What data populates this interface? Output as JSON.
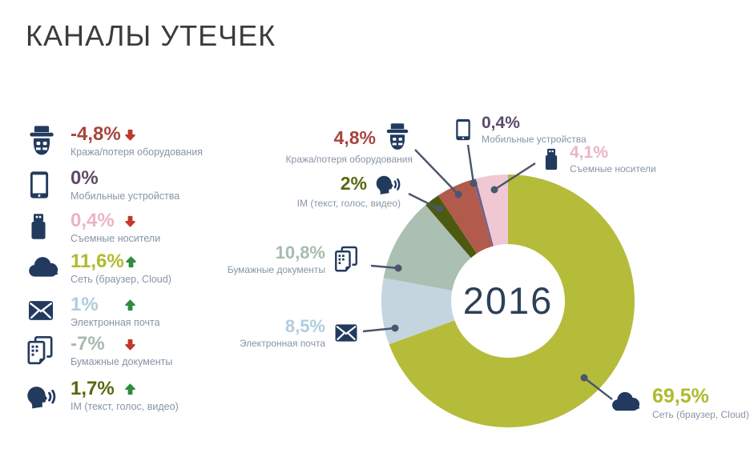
{
  "title": "КАНАЛЫ УТЕЧЕК",
  "center_year": "2016",
  "colors": {
    "icon_navy": "#223a5e",
    "label_gray": "#8795a5",
    "connector": "#49566b",
    "trend_up": "#2f8c3c",
    "trend_down": "#c0392b",
    "title_text": "#3b3b3b",
    "center_year_text": "#2d4057"
  },
  "legend": {
    "items": [
      {
        "icon": "thief-icon",
        "value": "-4,8%",
        "trend": "down",
        "label": "Кража/потеря оборудования",
        "color": "#a8453c"
      },
      {
        "icon": "tablet-icon",
        "value": "0%",
        "trend": "none",
        "label": "Мобильные устройства",
        "color": "#5d4b69"
      },
      {
        "icon": "usb-icon",
        "value": "0,4%",
        "trend": "down",
        "label": "Съемные носители",
        "color": "#eab4c4"
      },
      {
        "icon": "cloud-icon",
        "value": "11,6%",
        "trend": "up",
        "label": "Сеть (браузер, Cloud)",
        "color": "#afba2e"
      },
      {
        "icon": "envelope-icon",
        "value": "1%",
        "trend": "up",
        "label": "Электронная почта",
        "color": "#b0cddd"
      },
      {
        "icon": "documents-icon",
        "value": "-7%",
        "trend": "down",
        "label": "Бумажные документы",
        "color": "#a5bcae"
      },
      {
        "icon": "speaking-head-icon",
        "value": "1,7%",
        "trend": "up",
        "label": "IM (текст, голос, видео)",
        "color": "#5a660f"
      }
    ]
  },
  "callouts": [
    {
      "icon": "thief-icon",
      "value": "4,8%",
      "label": "Кража/потеря оборудования",
      "color": "#a8453c"
    },
    {
      "icon": "tablet-icon",
      "value": "0,4%",
      "label": "Мобильные устройства",
      "color": "#5d4b69"
    },
    {
      "icon": "usb-icon",
      "value": "4,1%",
      "label": "Съемные носители",
      "color": "#eab4c4"
    },
    {
      "icon": "speaking-head-icon",
      "value": "2%",
      "label": "IM (текст, голос, видео)",
      "color": "#5a660f"
    },
    {
      "icon": "documents-icon",
      "value": "10,8%",
      "label": "Бумажные документы",
      "color": "#a5bcae"
    },
    {
      "icon": "envelope-icon",
      "value": "8,5%",
      "label": "Электронная почта",
      "color": "#b0cddd"
    },
    {
      "icon": "cloud-icon",
      "value": "69,5%",
      "label": "Сеть (браузер, Cloud)",
      "color": "#afba2e"
    }
  ],
  "chart_data": {
    "type": "pie",
    "subtype": "donut",
    "title": "КАНАЛЫ УТЕЧЕК",
    "center_label": "2016",
    "unit": "%",
    "start_angle_deg": 0,
    "direction": "clockwise",
    "slices": [
      {
        "label": "Сеть (браузер, Cloud)",
        "value": 69.5,
        "display": "69,5%",
        "color": "#b4bc3a"
      },
      {
        "label": "Электронная почта",
        "value": 8.5,
        "display": "8,5%",
        "color": "#c4d5e0"
      },
      {
        "label": "Бумажные документы",
        "value": 10.8,
        "display": "10,8%",
        "color": "#abbfb2"
      },
      {
        "label": "IM (текст, голос, видео)",
        "value": 2.0,
        "display": "2%",
        "color": "#4c5a10"
      },
      {
        "label": "Кража/потеря оборудования",
        "value": 4.8,
        "display": "4,8%",
        "color": "#b25a4c"
      },
      {
        "label": "Мобильные устройства",
        "value": 0.4,
        "display": "0,4%",
        "color": "#70608a"
      },
      {
        "label": "Съемные носители",
        "value": 4.1,
        "display": "4,1%",
        "color": "#efc8d4"
      }
    ],
    "year_over_year_change": [
      {
        "label": "Кража/потеря оборудования",
        "change": "-4,8%"
      },
      {
        "label": "Мобильные устройства",
        "change": "0%"
      },
      {
        "label": "Съемные носители",
        "change": "0,4%"
      },
      {
        "label": "Сеть (браузер, Cloud)",
        "change": "11,6%"
      },
      {
        "label": "Электронная почта",
        "change": "1%"
      },
      {
        "label": "Бумажные документы",
        "change": "-7%"
      },
      {
        "label": "IM (текст, голос, видео)",
        "change": "1,7%"
      }
    ]
  }
}
